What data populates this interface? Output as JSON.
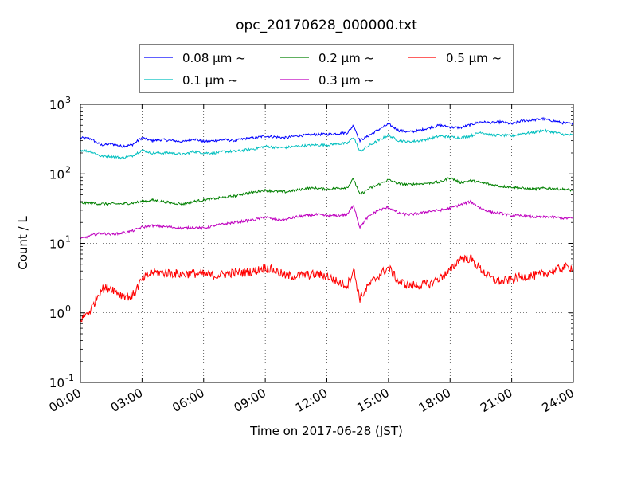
{
  "chart_data": {
    "type": "line",
    "title": "opc_20170628_000000.txt",
    "xlabel": "Time on 2017-06-28 (JST)",
    "ylabel": "Count / L",
    "y_scale": "log",
    "ylim_exponents": [
      -1,
      3
    ],
    "y_ticks": [
      {
        "base": "10",
        "exp": "-1"
      },
      {
        "base": "10",
        "exp": "0"
      },
      {
        "base": "10",
        "exp": "1"
      },
      {
        "base": "10",
        "exp": "2"
      },
      {
        "base": "10",
        "exp": "3"
      }
    ],
    "x_ticks": [
      "00:00",
      "03:00",
      "06:00",
      "09:00",
      "12:00",
      "15:00",
      "18:00",
      "21:00",
      "24:00"
    ],
    "xlim_hours": [
      0,
      24
    ],
    "grid": true,
    "legend_position": "top-center-outside",
    "legend_columns": 3,
    "x_hours": [
      0,
      0.5,
      1,
      1.5,
      2,
      2.5,
      3,
      3.5,
      4,
      4.5,
      5,
      5.5,
      6,
      6.5,
      7,
      7.5,
      8,
      8.5,
      9,
      9.5,
      10,
      10.5,
      11,
      11.5,
      12,
      12.5,
      13,
      13.3,
      13.6,
      14,
      14.5,
      15,
      15.5,
      16,
      16.5,
      17,
      17.5,
      18,
      18.5,
      19,
      19.5,
      20,
      20.5,
      21,
      21.5,
      22,
      22.5,
      23,
      23.5,
      24
    ],
    "series": [
      {
        "name": "0.08 μm ~",
        "color": "#0000ff",
        "values": [
          330,
          320,
          260,
          270,
          250,
          260,
          330,
          300,
          310,
          300,
          290,
          320,
          290,
          300,
          310,
          300,
          320,
          330,
          350,
          340,
          330,
          350,
          360,
          370,
          370,
          380,
          390,
          500,
          300,
          350,
          430,
          520,
          420,
          400,
          420,
          460,
          500,
          470,
          460,
          510,
          560,
          540,
          560,
          520,
          580,
          590,
          620,
          580,
          540,
          520
        ]
      },
      {
        "name": "0.1 μm ~",
        "color": "#00bfbf",
        "values": [
          220,
          210,
          180,
          180,
          170,
          180,
          220,
          200,
          200,
          200,
          190,
          210,
          200,
          200,
          210,
          210,
          220,
          230,
          250,
          240,
          240,
          250,
          255,
          260,
          260,
          270,
          275,
          340,
          210,
          250,
          300,
          360,
          300,
          290,
          300,
          320,
          350,
          340,
          330,
          350,
          400,
          360,
          360,
          350,
          380,
          390,
          420,
          400,
          370,
          360
        ]
      },
      {
        "name": "0.2 μm ~",
        "color": "#008000",
        "values": [
          38,
          38,
          37,
          37,
          37,
          38,
          40,
          42,
          40,
          38,
          37,
          40,
          42,
          44,
          46,
          48,
          52,
          55,
          58,
          56,
          55,
          58,
          62,
          62,
          60,
          62,
          64,
          85,
          50,
          60,
          70,
          82,
          72,
          70,
          72,
          74,
          76,
          88,
          75,
          80,
          75,
          70,
          66,
          65,
          62,
          60,
          62,
          62,
          60,
          58
        ]
      },
      {
        "name": "0.3 μm ~",
        "color": "#bf00bf",
        "values": [
          11.5,
          13,
          14,
          13.5,
          14,
          15,
          17,
          18,
          17.5,
          17,
          16.5,
          17,
          16.5,
          18,
          19,
          20,
          21,
          22,
          24,
          22,
          22,
          24,
          25,
          26,
          25,
          25,
          26,
          36,
          17,
          24,
          30,
          33,
          27,
          26,
          27,
          29,
          30,
          32,
          36,
          40,
          32,
          28,
          27,
          25,
          25,
          24,
          24,
          24,
          23,
          23
        ]
      },
      {
        "name": "0.5 μm ~",
        "color": "#ff0000",
        "values": [
          0.8,
          1.1,
          2.2,
          2.3,
          1.8,
          1.7,
          3.0,
          3.8,
          3.8,
          3.7,
          3.6,
          3.7,
          3.6,
          3.4,
          3.6,
          3.8,
          3.8,
          4.0,
          4.5,
          4.0,
          3.4,
          3.4,
          3.5,
          3.6,
          3.4,
          2.8,
          2.5,
          4.2,
          1.6,
          2.4,
          3.4,
          4.5,
          2.8,
          2.5,
          2.5,
          2.6,
          3.2,
          4.0,
          6.2,
          6.0,
          4.2,
          3.1,
          2.8,
          3.0,
          3.3,
          3.4,
          3.6,
          4.0,
          4.5,
          4.5
        ]
      }
    ]
  }
}
